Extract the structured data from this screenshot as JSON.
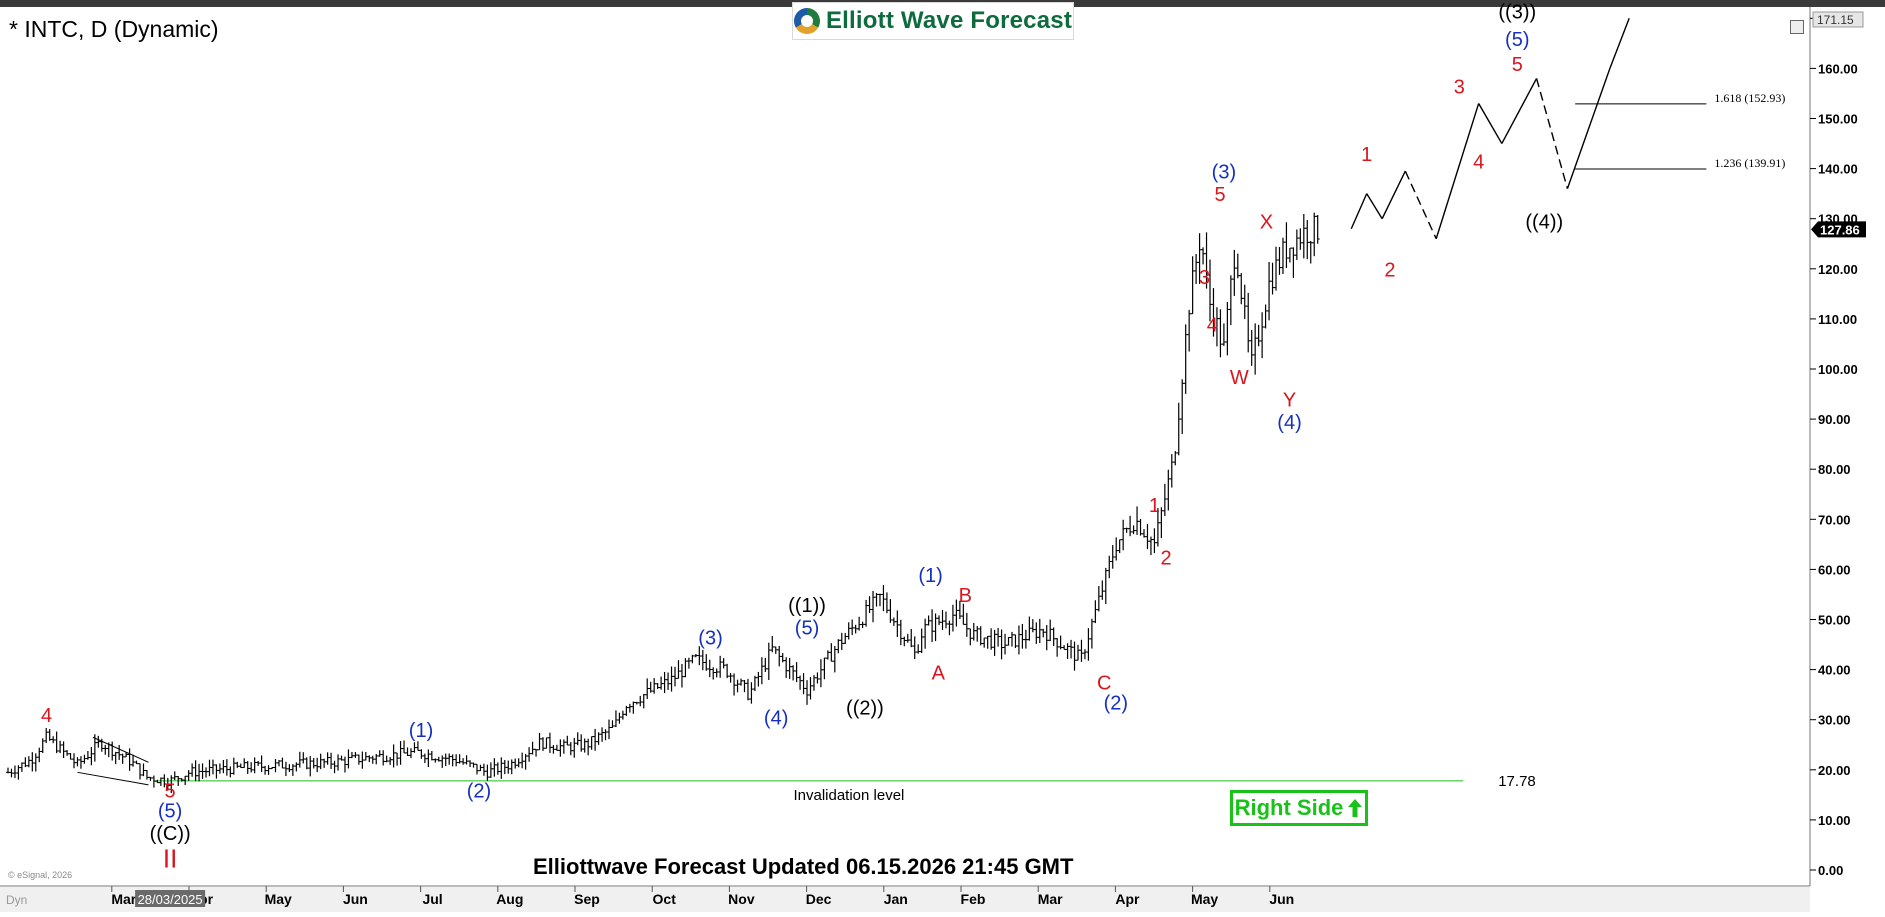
{
  "header": {
    "ticker": "* INTC, D (Dynamic)",
    "logo": "Elliott Wave Forecast"
  },
  "footer": {
    "updated": "Elliottwave Forecast Updated 06.15.2026 21:45 GMT",
    "source": "© eSignal, 2026"
  },
  "badge": {
    "label": "Right Side",
    "color": "#19c219"
  },
  "icons": [
    "logo-swirl-icon",
    "up-arrow-icon",
    "window-restore-icon"
  ],
  "colors": {
    "bar": "#000000",
    "wave_red": "#d9161d",
    "wave_blue": "#1530c0",
    "wave_black": "#000000",
    "invalidation": "#19c219",
    "price_tag": "#000000"
  },
  "chart_data": {
    "type": "line",
    "style": "ohlc-bars",
    "y_axis": {
      "min": 0,
      "max": 170,
      "ticks": [
        "0.00",
        "10.00",
        "20.00",
        "30.00",
        "40.00",
        "50.00",
        "60.00",
        "70.00",
        "80.00",
        "90.00",
        "100.00",
        "110.00",
        "120.00",
        "130.00",
        "140.00",
        "150.00",
        "160.00",
        "170.00"
      ],
      "top_label": "171.15",
      "last_price_label": "127.86",
      "last_price": 127.86
    },
    "x_axis": {
      "ticks": [
        "Mar",
        "Apr",
        "May",
        "Jun",
        "Jul",
        "Aug",
        "Sep",
        "Oct",
        "Nov",
        "Dec",
        "Jan",
        "Feb",
        "Mar",
        "Apr",
        "May",
        "Jun"
      ],
      "tick_t": [
        1.5,
        2.5,
        3.5,
        4.5,
        5.5,
        6.5,
        7.5,
        8.5,
        9.5,
        10.5,
        11.5,
        12.5,
        13.5,
        14.5,
        15.5,
        16.5
      ],
      "prefix_label": "Dyn",
      "highlight_label": "28/03/2025",
      "highlight_t": 2.1
    },
    "price_path": {
      "t": [
        0.0,
        0.3,
        0.5,
        0.9,
        1.2,
        1.6,
        1.8,
        2.1,
        2.35,
        2.7,
        3.1,
        3.6,
        4.2,
        4.7,
        5.3,
        5.8,
        6.2,
        6.5,
        6.9,
        7.2,
        7.5,
        7.85,
        8.0,
        8.6,
        8.9,
        9.3,
        9.6,
        9.9,
        10.35,
        10.75,
        11.3,
        11.75,
        11.85,
        12.25,
        12.5,
        12.9,
        13.4,
        13.9,
        14.35,
        14.6,
        14.85,
        15.1,
        15.3,
        15.45,
        15.55,
        15.75,
        15.9,
        16.1,
        16.35,
        16.55,
        16.8,
        17.0
      ],
      "price": [
        19.5,
        22,
        26.5,
        21,
        25.5,
        21.5,
        18.5,
        17.78,
        19.5,
        20,
        20.5,
        21,
        21.5,
        22.5,
        23.5,
        22,
        19.5,
        21,
        25.5,
        24.5,
        25,
        28.5,
        33,
        38,
        42,
        40,
        35,
        44,
        36,
        45,
        54.5,
        43,
        48,
        51,
        47,
        45,
        48,
        42,
        65,
        70,
        65,
        82,
        113,
        127,
        114,
        104,
        125,
        100,
        118,
        124,
        127.5,
        127.86
      ],
      "noise": 1.4
    },
    "projection": {
      "t": [
        17.4,
        17.6,
        17.8,
        18.1,
        18.5,
        19.05,
        19.35,
        19.8,
        20.2,
        20.75,
        21.0
      ],
      "price": [
        128,
        135,
        130,
        139.5,
        126,
        153,
        145,
        158,
        136,
        160,
        170
      ],
      "dashed_segments": [
        [
          3,
          4
        ],
        [
          7,
          8
        ]
      ]
    },
    "fib_levels": [
      {
        "label": "1.618 (152.93)",
        "value": 152.93,
        "t_start": 20.3,
        "t_end": 22.0
      },
      {
        "label": "1.236 (139.91)",
        "value": 139.91,
        "t_start": 20.3,
        "t_end": 22.0
      }
    ],
    "invalidation": {
      "value": 17.78,
      "label": "17.78",
      "caption": "Invalidation level",
      "t_start": 1.9,
      "t_end": 18.85
    },
    "wave_labels": [
      {
        "text": "4",
        "t": 0.5,
        "price": 29.5,
        "color": "red"
      },
      {
        "text": "5",
        "t": 2.1,
        "price": 14.5,
        "color": "red"
      },
      {
        "text": "(5)",
        "t": 2.1,
        "price": 10.5,
        "color": "blue"
      },
      {
        "text": "((C))",
        "t": 2.1,
        "price": 6,
        "color": "black"
      },
      {
        "text": "II",
        "t": 2.1,
        "price": 0.5,
        "color": "red"
      },
      {
        "text": "(1)",
        "t": 5.35,
        "price": 26.5,
        "color": "blue"
      },
      {
        "text": "(2)",
        "t": 6.1,
        "price": 14.5,
        "color": "blue"
      },
      {
        "text": "(3)",
        "t": 9.1,
        "price": 45,
        "color": "blue"
      },
      {
        "text": "(4)",
        "t": 9.95,
        "price": 29,
        "color": "blue"
      },
      {
        "text": "(5)",
        "t": 10.35,
        "price": 47,
        "color": "blue"
      },
      {
        "text": "((1))",
        "t": 10.35,
        "price": 51.5,
        "color": "black"
      },
      {
        "text": "((2))",
        "t": 11.1,
        "price": 31,
        "color": "black"
      },
      {
        "text": "(1)",
        "t": 11.95,
        "price": 57.5,
        "color": "blue"
      },
      {
        "text": "A",
        "t": 12.05,
        "price": 38,
        "color": "red"
      },
      {
        "text": "B",
        "t": 12.4,
        "price": 53.5,
        "color": "red"
      },
      {
        "text": "C",
        "t": 14.2,
        "price": 36,
        "color": "red"
      },
      {
        "text": "(2)",
        "t": 14.35,
        "price": 32,
        "color": "blue"
      },
      {
        "text": "1",
        "t": 14.85,
        "price": 71.5,
        "color": "red"
      },
      {
        "text": "2",
        "t": 15.0,
        "price": 61,
        "color": "red"
      },
      {
        "text": "3",
        "t": 15.5,
        "price": 117,
        "color": "red"
      },
      {
        "text": "4",
        "t": 15.6,
        "price": 107.5,
        "color": "red"
      },
      {
        "text": "5",
        "t": 15.7,
        "price": 133.5,
        "color": "red"
      },
      {
        "text": "(3)",
        "t": 15.75,
        "price": 138,
        "color": "blue"
      },
      {
        "text": "W",
        "t": 15.95,
        "price": 97,
        "color": "red"
      },
      {
        "text": "X",
        "t": 16.3,
        "price": 128,
        "color": "red"
      },
      {
        "text": "Y",
        "t": 16.6,
        "price": 92.5,
        "color": "red"
      },
      {
        "text": "(4)",
        "t": 16.6,
        "price": 88,
        "color": "blue"
      },
      {
        "text": "1",
        "t": 17.6,
        "price": 141.5,
        "color": "red"
      },
      {
        "text": "2",
        "t": 17.9,
        "price": 118.5,
        "color": "red"
      },
      {
        "text": "3",
        "t": 18.8,
        "price": 155,
        "color": "red"
      },
      {
        "text": "4",
        "t": 19.05,
        "price": 140,
        "color": "red"
      },
      {
        "text": "5",
        "t": 19.55,
        "price": 159.5,
        "color": "red"
      },
      {
        "text": "(5)",
        "t": 19.55,
        "price": 164.5,
        "color": "blue"
      },
      {
        "text": "((3))",
        "t": 19.55,
        "price": 170,
        "color": "black"
      },
      {
        "text": "((4))",
        "t": 19.9,
        "price": 128,
        "color": "black"
      }
    ]
  }
}
